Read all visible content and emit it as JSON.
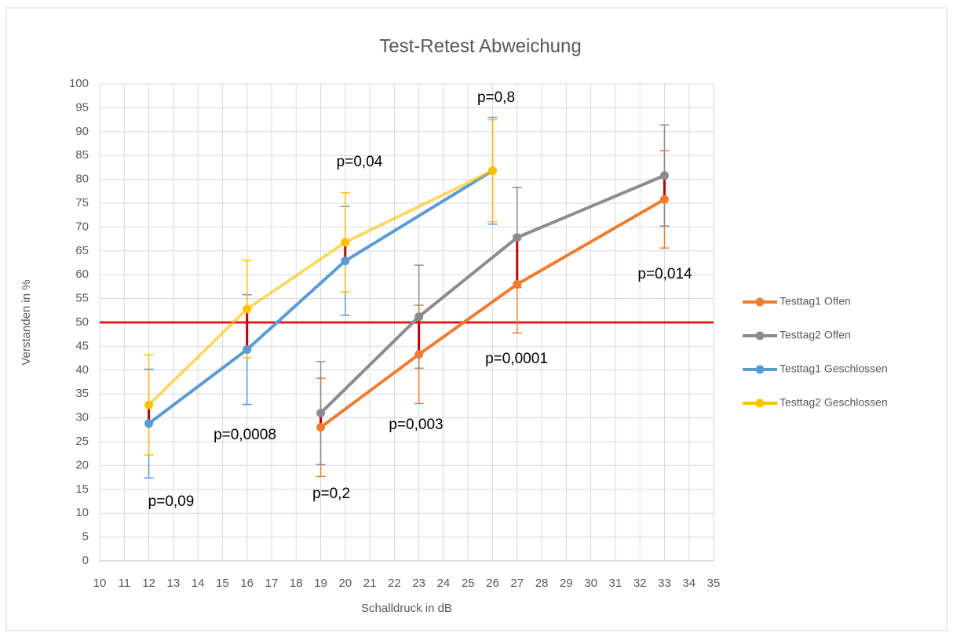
{
  "chart_data": {
    "type": "line",
    "title": "Test-Retest Abweichung",
    "x_label": "Schalldruck in dB",
    "y_label": "Verstanden in %",
    "xlim": [
      10,
      35
    ],
    "xticks": [
      10,
      11,
      12,
      13,
      14,
      15,
      16,
      17,
      18,
      19,
      20,
      21,
      22,
      23,
      24,
      25,
      26,
      27,
      28,
      29,
      30,
      31,
      32,
      33,
      34,
      35
    ],
    "ylim": [
      0,
      100
    ],
    "yticks": [
      0,
      5,
      10,
      15,
      20,
      25,
      30,
      35,
      40,
      45,
      50,
      55,
      60,
      65,
      70,
      75,
      80,
      85,
      90,
      95,
      100
    ],
    "grid": true,
    "legend": "right",
    "reference_line": {
      "value": 50,
      "color": "#e02020"
    },
    "connector_color": "#c00000",
    "series": [
      {
        "name": "Testtag1 Offen",
        "color": "#ed7d31",
        "x": [
          19,
          23,
          27,
          33
        ],
        "values": [
          28,
          43.3,
          58,
          75.8
        ],
        "errors": [
          10.3,
          10.3,
          10.2,
          10.2
        ]
      },
      {
        "name": "Testtag2 Offen",
        "color": "#8c8c8c",
        "x": [
          19,
          23,
          27,
          33
        ],
        "values": [
          31,
          51.2,
          67.8,
          80.8
        ],
        "errors": [
          10.8,
          10.8,
          10.5,
          10.6
        ]
      },
      {
        "name": "Testtag1 Geschlossen",
        "color": "#5b9bd5",
        "x": [
          12,
          16,
          20,
          26
        ],
        "values": [
          28.8,
          44.3,
          62.9,
          81.8
        ],
        "errors": [
          11.4,
          11.5,
          11.4,
          11.2
        ]
      },
      {
        "name": "Testtag2 Geschlossen",
        "color": "#ffc000",
        "x": [
          12,
          16,
          20,
          26
        ],
        "values": [
          32.7,
          52.8,
          66.8,
          81.8
        ],
        "errors": [
          10.5,
          10.2,
          10.4,
          10.7
        ]
      }
    ],
    "annotations": [
      "p=0,09",
      "p=0,0008",
      "p=0,2",
      "p=0,04",
      "p=0,003",
      "p=0,8",
      "p=0,0001",
      "p=0,014"
    ]
  }
}
